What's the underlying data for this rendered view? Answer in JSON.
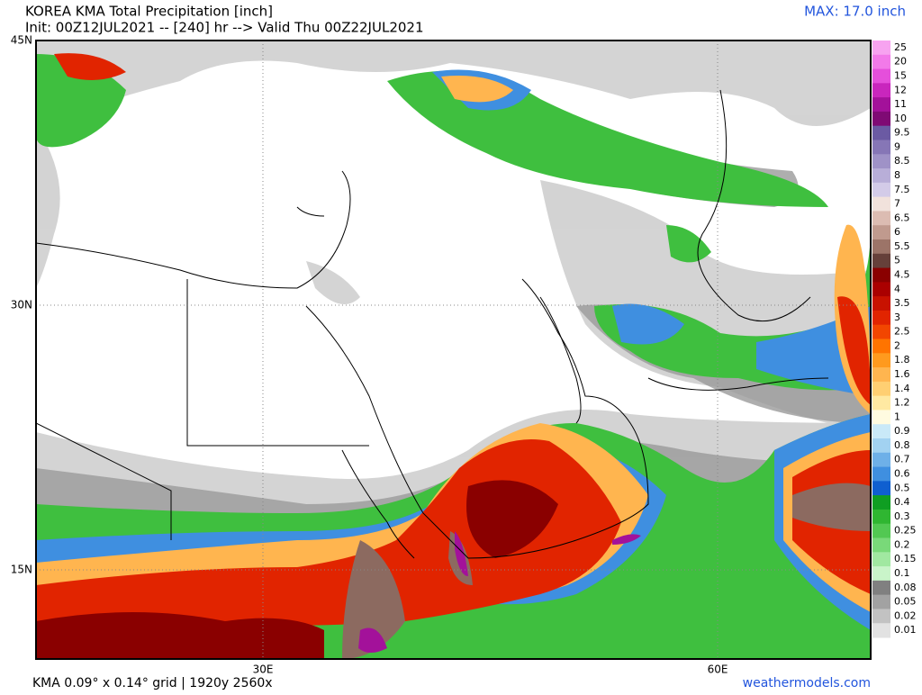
{
  "header": {
    "title": "KOREA KMA Total Precipitation [inch]",
    "subtitle": "Init: 00Z12JUL2021 -- [240] hr --> Valid Thu 00Z22JUL2021",
    "max": "MAX: 17.0 inch"
  },
  "axes": {
    "lat_labels": [
      "45N",
      "30N",
      "15N"
    ],
    "lon_labels": [
      "30E",
      "60E"
    ]
  },
  "footer": {
    "grid": "KMA 0.09° x 0.14° grid | 1920y 2560x",
    "site": "weathermodels.com"
  },
  "colorbar": {
    "levels": [
      {
        "label": "25",
        "color": "#f7a3f0"
      },
      {
        "label": "20",
        "color": "#f27ae9"
      },
      {
        "label": "15",
        "color": "#e54fdb"
      },
      {
        "label": "12",
        "color": "#c926bd"
      },
      {
        "label": "11",
        "color": "#a3119a"
      },
      {
        "label": "10",
        "color": "#7f0a74"
      },
      {
        "label": "9.5",
        "color": "#6b5aa3"
      },
      {
        "label": "9",
        "color": "#8676b6"
      },
      {
        "label": "8.5",
        "color": "#9f92c7"
      },
      {
        "label": "8",
        "color": "#b8aed8"
      },
      {
        "label": "7.5",
        "color": "#d3cbe8"
      },
      {
        "label": "7",
        "color": "#f1e2dc"
      },
      {
        "label": "6.5",
        "color": "#dcbcb2"
      },
      {
        "label": "6",
        "color": "#c09a8e"
      },
      {
        "label": "5.5",
        "color": "#9c7468"
      },
      {
        "label": "5",
        "color": "#66403a"
      },
      {
        "label": "4.5",
        "color": "#8a0000"
      },
      {
        "label": "4",
        "color": "#aa0000"
      },
      {
        "label": "3.5",
        "color": "#c81200"
      },
      {
        "label": "3",
        "color": "#e12400"
      },
      {
        "label": "2.5",
        "color": "#f24600"
      },
      {
        "label": "2",
        "color": "#ff7400"
      },
      {
        "label": "1.8",
        "color": "#ff9a1e"
      },
      {
        "label": "1.6",
        "color": "#ffb54f"
      },
      {
        "label": "1.4",
        "color": "#ffcf72"
      },
      {
        "label": "1.2",
        "color": "#ffe9a2"
      },
      {
        "label": "1",
        "color": "#fffbe0"
      },
      {
        "label": "0.9",
        "color": "#c9e9f8"
      },
      {
        "label": "0.8",
        "color": "#a2d2f1"
      },
      {
        "label": "0.7",
        "color": "#6eb0e8"
      },
      {
        "label": "0.6",
        "color": "#3f8fe0"
      },
      {
        "label": "0.5",
        "color": "#0f5fd0"
      },
      {
        "label": "0.4",
        "color": "#0f9e22"
      },
      {
        "label": "0.3",
        "color": "#2fb631"
      },
      {
        "label": "0.25",
        "color": "#52c852"
      },
      {
        "label": "0.2",
        "color": "#79d979"
      },
      {
        "label": "0.15",
        "color": "#a1e8a1"
      },
      {
        "label": "0.1",
        "color": "#c9f4c9"
      },
      {
        "label": "0.08",
        "color": "#808080"
      },
      {
        "label": "0.05",
        "color": "#a2a2a2"
      },
      {
        "label": "0.02",
        "color": "#c2c2c2"
      },
      {
        "label": "0.01",
        "color": "#e2e2e2"
      }
    ]
  }
}
